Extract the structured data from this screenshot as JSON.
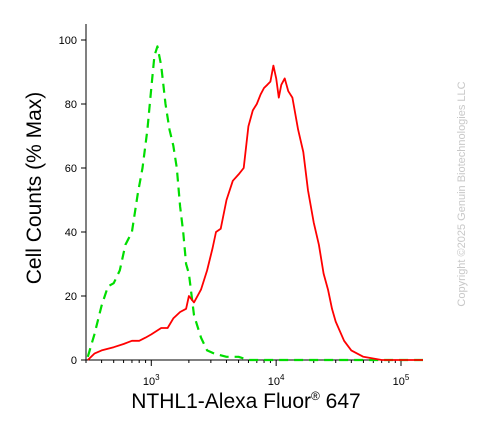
{
  "chart_data": {
    "type": "line",
    "xlabel": "NTHL1-Alexa Fluor",
    "xlabel_sup": "®",
    "xlabel_tail": " 647",
    "ylabel": "Cell Counts (% Max)",
    "watermark": "Copyright ©2025 Genuin Biotechnologies LLC",
    "x_scale": "log",
    "xlim": [
      300,
      150000
    ],
    "ylim": [
      0,
      105
    ],
    "grid": false,
    "y_ticks": [
      0,
      20,
      40,
      60,
      80,
      100
    ],
    "y_tick_labels": [
      "0",
      "20",
      "40",
      "60",
      "80",
      "100"
    ],
    "x_major_ticks": [
      1000,
      10000,
      100000
    ],
    "x_tick_labels": [
      {
        "base": "10",
        "exp": "3"
      },
      {
        "base": "10",
        "exp": "4"
      },
      {
        "base": "10",
        "exp": "5"
      }
    ],
    "series": [
      {
        "color": "#00dd00",
        "dash": true,
        "points": [
          [
            310,
            1
          ],
          [
            350,
            8
          ],
          [
            400,
            17
          ],
          [
            450,
            23
          ],
          [
            500,
            24
          ],
          [
            560,
            28
          ],
          [
            620,
            36
          ],
          [
            700,
            40
          ],
          [
            780,
            52
          ],
          [
            850,
            60
          ],
          [
            930,
            72
          ],
          [
            1000,
            85
          ],
          [
            1060,
            95
          ],
          [
            1120,
            98
          ],
          [
            1200,
            92
          ],
          [
            1300,
            80
          ],
          [
            1400,
            72
          ],
          [
            1500,
            67
          ],
          [
            1600,
            60
          ],
          [
            1700,
            48
          ],
          [
            1800,
            40
          ],
          [
            1900,
            30
          ],
          [
            2000,
            27
          ],
          [
            2200,
            14
          ],
          [
            2500,
            7
          ],
          [
            2800,
            3
          ],
          [
            3200,
            2
          ],
          [
            4000,
            1
          ],
          [
            5000,
            1
          ],
          [
            6000,
            0
          ],
          [
            8000,
            0
          ],
          [
            12000,
            0
          ],
          [
            20000,
            0
          ],
          [
            40000,
            0
          ],
          [
            70000,
            0
          ],
          [
            150000,
            0
          ]
        ]
      },
      {
        "color": "#ff0000",
        "dash": false,
        "points": [
          [
            310,
            0
          ],
          [
            350,
            2
          ],
          [
            400,
            3
          ],
          [
            500,
            4
          ],
          [
            600,
            5
          ],
          [
            700,
            6
          ],
          [
            800,
            6
          ],
          [
            900,
            7
          ],
          [
            1000,
            8
          ],
          [
            1200,
            10
          ],
          [
            1350,
            10
          ],
          [
            1500,
            13
          ],
          [
            1700,
            15
          ],
          [
            1900,
            16
          ],
          [
            2000,
            20
          ],
          [
            2200,
            18
          ],
          [
            2500,
            22
          ],
          [
            2800,
            28
          ],
          [
            3100,
            35
          ],
          [
            3300,
            40
          ],
          [
            3600,
            41
          ],
          [
            4000,
            50
          ],
          [
            4500,
            56
          ],
          [
            5000,
            58
          ],
          [
            5500,
            60
          ],
          [
            6000,
            73
          ],
          [
            6500,
            78
          ],
          [
            7000,
            80
          ],
          [
            7500,
            83
          ],
          [
            8000,
            85
          ],
          [
            8500,
            86
          ],
          [
            9000,
            87
          ],
          [
            9500,
            92
          ],
          [
            10000,
            88
          ],
          [
            10500,
            82
          ],
          [
            11000,
            86
          ],
          [
            11700,
            88
          ],
          [
            12500,
            84
          ],
          [
            13500,
            82
          ],
          [
            15000,
            72
          ],
          [
            16500,
            65
          ],
          [
            18000,
            53
          ],
          [
            20000,
            43
          ],
          [
            22000,
            36
          ],
          [
            24000,
            27
          ],
          [
            26000,
            22
          ],
          [
            28000,
            16
          ],
          [
            30000,
            12
          ],
          [
            35000,
            6
          ],
          [
            40000,
            3
          ],
          [
            50000,
            1
          ],
          [
            70000,
            0
          ],
          [
            100000,
            0
          ],
          [
            150000,
            0
          ]
        ]
      }
    ]
  }
}
